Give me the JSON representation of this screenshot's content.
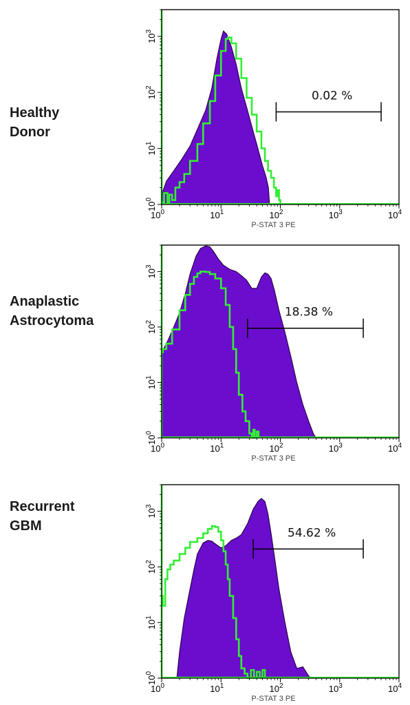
{
  "chart_data": [
    {
      "type": "area",
      "title_lines": [
        "Healthy",
        "Donor"
      ],
      "xlabel": "P-STAT 3 PE",
      "x_scale": "log",
      "y_scale": "log",
      "xlim": [
        1,
        10000
      ],
      "ylim": [
        1,
        3000
      ],
      "x_ticks": [
        1,
        10,
        100,
        1000,
        10000
      ],
      "y_ticks": [
        1,
        10,
        100,
        1000
      ],
      "gate": {
        "label": "0.02 %",
        "x_range": [
          85,
          5000
        ]
      },
      "colors": {
        "filled": "#6a0dcc",
        "outline": "#33ee33"
      },
      "series": [
        {
          "style": "filled",
          "x": [
            1,
            1.2,
            1.6,
            2.2,
            3,
            4,
            5.5,
            7,
            8.5,
            10,
            11,
            12.5,
            15,
            18,
            22,
            27,
            33,
            40,
            50,
            58,
            63,
            66
          ],
          "values": [
            1.5,
            2.6,
            4,
            6.5,
            11,
            22,
            48,
            120,
            400,
            900,
            1250,
            1100,
            650,
            320,
            120,
            55,
            25,
            12,
            5,
            3,
            2,
            1
          ]
        },
        {
          "style": "outline",
          "x": [
            1,
            1.1,
            1.25,
            1.35,
            1.5,
            1.7,
            2,
            2.4,
            3,
            4,
            5,
            6.5,
            8,
            10,
            12,
            13,
            15,
            18,
            22,
            27,
            33,
            40,
            48,
            55,
            62,
            70,
            78,
            85,
            90,
            95,
            100
          ],
          "values": [
            1.1,
            1.6,
            1.1,
            1.5,
            1.2,
            2,
            2.5,
            3.5,
            6,
            12,
            28,
            70,
            200,
            550,
            900,
            950,
            750,
            400,
            180,
            80,
            40,
            20,
            10,
            6,
            4,
            3,
            2,
            1.4,
            1.8,
            1.2,
            1
          ]
        }
      ]
    },
    {
      "type": "area",
      "title_lines": [
        "Anaplastic",
        "Astrocytoma"
      ],
      "xlabel": "P-STAT 3 PE",
      "x_scale": "log",
      "y_scale": "log",
      "xlim": [
        1,
        10000
      ],
      "ylim": [
        1,
        3000
      ],
      "x_ticks": [
        1,
        10,
        100,
        1000,
        10000
      ],
      "y_ticks": [
        1,
        10,
        100,
        1000
      ],
      "gate": {
        "label": "18.38 %",
        "x_range": [
          28,
          2500
        ]
      },
      "colors": {
        "filled": "#6a0dcc",
        "outline": "#33ee33"
      },
      "series": [
        {
          "style": "filled",
          "x": [
            1,
            1.1,
            1.3,
            1.6,
            2,
            2.5,
            3,
            3.8,
            4.5,
            5.5,
            6.5,
            7.5,
            9,
            11,
            14,
            18,
            22,
            27,
            33,
            40,
            48,
            55,
            62,
            70,
            80,
            95,
            120,
            150,
            190,
            240,
            300,
            360,
            400
          ],
          "values": [
            35,
            42,
            60,
            100,
            180,
            400,
            900,
            1900,
            2600,
            2900,
            2800,
            2300,
            1700,
            1300,
            1100,
            1000,
            850,
            700,
            500,
            500,
            800,
            950,
            900,
            750,
            450,
            200,
            80,
            30,
            10,
            4,
            2,
            1.2,
            1
          ]
        },
        {
          "style": "outline",
          "x": [
            1,
            1.05,
            1.2,
            1.5,
            2,
            2.5,
            3,
            3.5,
            4,
            4.5,
            5,
            5.5,
            6.5,
            8,
            10,
            12,
            14,
            16,
            18,
            20,
            23,
            26,
            30,
            33,
            35,
            37,
            40,
            43
          ],
          "values": [
            35,
            40,
            50,
            90,
            200,
            380,
            600,
            800,
            930,
            1000,
            1000,
            980,
            900,
            750,
            500,
            250,
            100,
            40,
            15,
            6,
            3,
            2,
            1.2,
            1,
            1.4,
            1,
            1.3,
            1
          ]
        }
      ]
    },
    {
      "type": "area",
      "title_lines": [
        "Recurrent",
        "GBM"
      ],
      "xlabel": "P-STAT 3 PE",
      "x_scale": "log",
      "y_scale": "log",
      "xlim": [
        1,
        10000
      ],
      "ylim": [
        1,
        3000
      ],
      "x_ticks": [
        1,
        10,
        100,
        1000,
        10000
      ],
      "y_ticks": [
        1,
        10,
        100,
        1000
      ],
      "gate": {
        "label": "54.62 %",
        "x_range": [
          35,
          2500
        ]
      },
      "colors": {
        "filled": "#6a0dcc",
        "outline": "#33ee33"
      },
      "series": [
        {
          "style": "filled",
          "x": [
            1.8,
            2,
            2.4,
            3,
            3.5,
            4,
            5,
            6,
            7,
            8,
            10,
            12,
            15,
            18,
            22,
            28,
            35,
            42,
            48,
            55,
            62,
            70,
            80,
            95,
            120,
            150,
            190,
            240,
            300,
            330
          ],
          "values": [
            1,
            3,
            12,
            40,
            90,
            170,
            270,
            300,
            290,
            260,
            220,
            240,
            300,
            330,
            380,
            600,
            1100,
            1500,
            1700,
            1500,
            900,
            400,
            150,
            40,
            10,
            3,
            1.5,
            1.6,
            1.1,
            1
          ]
        },
        {
          "style": "outline",
          "x": [
            1,
            1.05,
            1.15,
            1.25,
            1.4,
            1.6,
            2,
            2.5,
            3,
            4,
            5,
            6,
            7,
            8,
            9,
            10,
            11,
            12,
            13,
            14,
            16,
            18,
            20,
            22,
            25,
            28,
            32,
            36,
            40,
            45,
            50,
            55
          ],
          "values": [
            30,
            20,
            60,
            90,
            110,
            130,
            170,
            220,
            280,
            330,
            400,
            480,
            540,
            520,
            430,
            300,
            190,
            110,
            60,
            30,
            12,
            5,
            2.5,
            1.5,
            1.2,
            1,
            1.4,
            1,
            1.3,
            1,
            1.4,
            1
          ]
        }
      ]
    }
  ]
}
